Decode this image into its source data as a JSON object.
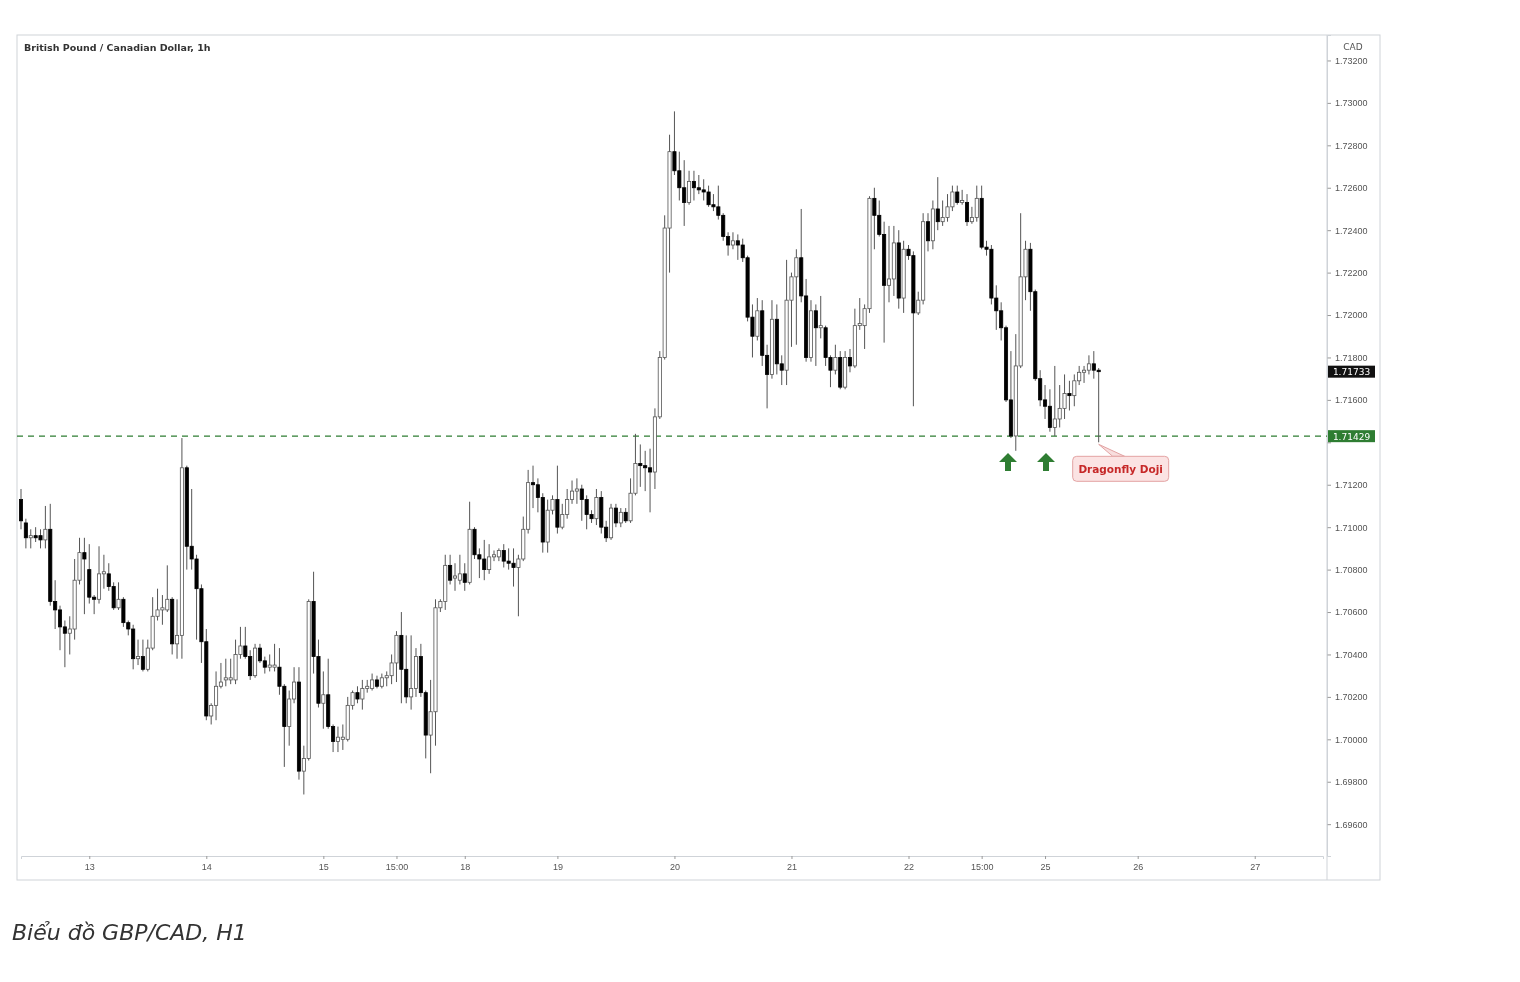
{
  "chart_data": {
    "type": "candlestick",
    "title": "British Pound / Canadian Dollar, 1h",
    "ylabel": "CAD",
    "categories": [
      null,
      null,
      null,
      null,
      null,
      null,
      null,
      null,
      null,
      null,
      null,
      null,
      null,
      null,
      "13",
      null,
      null,
      null,
      null,
      null,
      null,
      null,
      null,
      null,
      null,
      null,
      null,
      null,
      null,
      null,
      null,
      null,
      null,
      null,
      null,
      null,
      null,
      null,
      "14",
      null,
      null,
      null,
      null,
      null,
      null,
      null,
      null,
      null,
      null,
      null,
      null,
      null,
      null,
      null,
      null,
      null,
      null,
      null,
      null,
      null,
      null,
      null,
      "15",
      null,
      null,
      null,
      null,
      null,
      null,
      null,
      null,
      null,
      null,
      null,
      null,
      null,
      null,
      "15:00",
      null,
      null,
      null,
      null,
      null,
      null,
      null,
      null,
      null,
      null,
      null,
      null,
      null,
      "18",
      null,
      null,
      null,
      null,
      null,
      null,
      null,
      null,
      null,
      null,
      null,
      null,
      null,
      null,
      null,
      null,
      null,
      null,
      "19",
      null,
      null,
      null,
      null,
      null,
      null,
      null,
      null,
      null,
      null,
      null,
      null,
      null,
      null,
      null,
      null,
      null,
      null,
      null,
      null,
      null,
      null,
      null,
      "20",
      null,
      null,
      null,
      null,
      null,
      null,
      null,
      null,
      null,
      null,
      null,
      null,
      null,
      null,
      null,
      null,
      null,
      null,
      null,
      null,
      null,
      null,
      null,
      "21",
      null,
      null,
      null,
      null,
      null,
      null,
      null,
      null,
      null,
      null,
      null,
      null,
      null,
      null,
      null,
      null,
      null,
      null,
      null,
      null,
      null,
      null,
      null,
      "22",
      null,
      null,
      null,
      null,
      null,
      null,
      null,
      null,
      null,
      null,
      null,
      null,
      null,
      null,
      "15:00",
      null,
      null,
      null,
      null,
      null,
      null,
      null,
      null,
      null,
      null,
      null,
      null,
      "25",
      null,
      null,
      null,
      null,
      null,
      null,
      null,
      null,
      null,
      null,
      null,
      null,
      null,
      null,
      null,
      null,
      null,
      null,
      "26",
      null,
      null,
      null,
      null,
      null,
      null,
      null,
      null,
      null,
      null,
      null,
      null,
      null,
      null,
      null,
      null,
      null,
      null,
      null,
      null,
      null,
      null,
      null,
      "27",
      null,
      null,
      null,
      null,
      null,
      null,
      null,
      null,
      null,
      null,
      null,
      null,
      null,
      null
    ],
    "ohlc": [
      [
        1.7113,
        1.7118,
        1.7099,
        1.7103
      ],
      [
        1.7102,
        1.7104,
        1.709,
        1.7095
      ],
      [
        1.7095,
        1.7099,
        1.709,
        1.7096
      ],
      [
        1.7096,
        1.71,
        1.7093,
        1.7095
      ],
      [
        1.7096,
        1.7099,
        1.709,
        1.7094
      ],
      [
        1.7094,
        1.711,
        1.709,
        1.7099
      ],
      [
        1.7099,
        1.7111,
        1.7063,
        1.7065
      ],
      [
        1.7065,
        1.7075,
        1.7052,
        1.7061
      ],
      [
        1.7061,
        1.7063,
        1.7042,
        1.7053
      ],
      [
        1.7053,
        1.7056,
        1.7034,
        1.705
      ],
      [
        1.705,
        1.7058,
        1.704,
        1.7052
      ],
      [
        1.7052,
        1.7085,
        1.7047,
        1.7075
      ],
      [
        1.7075,
        1.7095,
        1.7073,
        1.7088
      ],
      [
        1.7088,
        1.7095,
        1.7059,
        1.7085
      ],
      [
        1.708,
        1.7092,
        1.7064,
        1.7067
      ],
      [
        1.7067,
        1.7068,
        1.7059,
        1.7066
      ],
      [
        1.7066,
        1.7091,
        1.7064,
        1.7078
      ],
      [
        1.7078,
        1.7087,
        1.7071,
        1.7079
      ],
      [
        1.7078,
        1.7083,
        1.707,
        1.7072
      ],
      [
        1.7072,
        1.7074,
        1.7061,
        1.7062
      ],
      [
        1.7062,
        1.7074,
        1.7061,
        1.7066
      ],
      [
        1.7066,
        1.7067,
        1.7053,
        1.7055
      ],
      [
        1.7055,
        1.7056,
        1.7049,
        1.7052
      ],
      [
        1.7052,
        1.7054,
        1.7033,
        1.7038
      ],
      [
        1.7038,
        1.7047,
        1.7035,
        1.7039
      ],
      [
        1.7039,
        1.7047,
        1.7032,
        1.7033
      ],
      [
        1.7033,
        1.7047,
        1.7032,
        1.7043
      ],
      [
        1.7043,
        1.7067,
        1.7042,
        1.7058
      ],
      [
        1.7058,
        1.7071,
        1.7056,
        1.7061
      ],
      [
        1.7061,
        1.7068,
        1.7054,
        1.7062
      ],
      [
        1.7061,
        1.7082,
        1.706,
        1.7066
      ],
      [
        1.7066,
        1.7067,
        1.704,
        1.7045
      ],
      [
        1.7045,
        1.7066,
        1.7038,
        1.7049
      ],
      [
        1.7049,
        1.7142,
        1.7038,
        1.7128
      ],
      [
        1.7128,
        1.7129,
        1.708,
        1.7091
      ],
      [
        1.7091,
        1.7118,
        1.708,
        1.7085
      ],
      [
        1.7085,
        1.7087,
        1.7047,
        1.7071
      ],
      [
        1.7071,
        1.7073,
        1.7036,
        1.7046
      ],
      [
        1.7046,
        1.7052,
        1.7009,
        1.7011
      ],
      [
        1.7011,
        1.7017,
        1.7007,
        1.7016
      ],
      [
        1.7016,
        1.7032,
        1.7009,
        1.7025
      ],
      [
        1.7025,
        1.7036,
        1.7024,
        1.7027
      ],
      [
        1.7028,
        1.7038,
        1.7025,
        1.7029
      ],
      [
        1.7028,
        1.7038,
        1.7026,
        1.7029
      ],
      [
        1.7028,
        1.7047,
        1.7026,
        1.704
      ],
      [
        1.704,
        1.7053,
        1.7038,
        1.7044
      ],
      [
        1.7044,
        1.7053,
        1.7038,
        1.7039
      ],
      [
        1.7039,
        1.7042,
        1.7028,
        1.703
      ],
      [
        1.703,
        1.7045,
        1.7029,
        1.7043
      ],
      [
        1.7043,
        1.7045,
        1.7036,
        1.7037
      ],
      [
        1.7037,
        1.7039,
        1.7031,
        1.7034
      ],
      [
        1.7034,
        1.704,
        1.7032,
        1.7035
      ],
      [
        1.7034,
        1.7045,
        1.7032,
        1.7035
      ],
      [
        1.7034,
        1.7043,
        1.7021,
        1.7025
      ],
      [
        1.7025,
        1.7026,
        1.6987,
        1.7006
      ],
      [
        1.7006,
        1.7023,
        1.6997,
        1.7019
      ],
      [
        1.7019,
        1.7034,
        1.7017,
        1.7027
      ],
      [
        1.7027,
        1.7034,
        1.6981,
        1.6985
      ],
      [
        1.6985,
        1.6997,
        1.6974,
        1.6991
      ],
      [
        1.6991,
        1.7066,
        1.699,
        1.7065
      ],
      [
        1.7065,
        1.7079,
        1.7031,
        1.7039
      ],
      [
        1.7039,
        1.7047,
        1.7015,
        1.7017
      ],
      [
        1.7017,
        1.7032,
        1.7005,
        1.7021
      ],
      [
        1.7021,
        1.7038,
        1.7005,
        1.7006
      ],
      [
        1.7006,
        1.7007,
        1.6994,
        1.6999
      ],
      [
        1.6999,
        1.7006,
        1.6994,
        1.7001
      ],
      [
        1.7,
        1.7007,
        1.6995,
        1.7001
      ],
      [
        1.7,
        1.702,
        1.6999,
        1.7016
      ],
      [
        1.7016,
        1.7023,
        1.7014,
        1.7022
      ],
      [
        1.7022,
        1.7025,
        1.7017,
        1.7019
      ],
      [
        1.7019,
        1.7028,
        1.7014,
        1.7024
      ],
      [
        1.7024,
        1.7028,
        1.7022,
        1.7025
      ],
      [
        1.7024,
        1.7031,
        1.7023,
        1.7028
      ],
      [
        1.7028,
        1.703,
        1.7024,
        1.7025
      ],
      [
        1.7025,
        1.7031,
        1.7024,
        1.7029
      ],
      [
        1.7029,
        1.7032,
        1.7025,
        1.703
      ],
      [
        1.703,
        1.704,
        1.7026,
        1.7036
      ],
      [
        1.7036,
        1.7051,
        1.7027,
        1.7049
      ],
      [
        1.7049,
        1.706,
        1.7017,
        1.7033
      ],
      [
        1.7033,
        1.7049,
        1.7017,
        1.702
      ],
      [
        1.702,
        1.7049,
        1.7014,
        1.7024
      ],
      [
        1.7024,
        1.7043,
        1.702,
        1.7039
      ],
      [
        1.7039,
        1.7045,
        1.702,
        1.7022
      ],
      [
        1.7022,
        1.7023,
        1.6991,
        1.7002
      ],
      [
        1.7002,
        1.7028,
        1.6984,
        1.7013
      ],
      [
        1.7013,
        1.7066,
        1.6997,
        1.7062
      ],
      [
        1.7062,
        1.7066,
        1.706,
        1.7065
      ],
      [
        1.7065,
        1.7087,
        1.7061,
        1.7082
      ],
      [
        1.7082,
        1.7087,
        1.7073,
        1.7075
      ],
      [
        1.7076,
        1.7083,
        1.707,
        1.7077
      ],
      [
        1.7075,
        1.7087,
        1.7073,
        1.7078
      ],
      [
        1.7078,
        1.7083,
        1.707,
        1.7074
      ],
      [
        1.7074,
        1.7112,
        1.7073,
        1.7099
      ],
      [
        1.7099,
        1.71,
        1.7085,
        1.7087
      ],
      [
        1.7087,
        1.709,
        1.7076,
        1.7085
      ],
      [
        1.7085,
        1.7094,
        1.7075,
        1.708
      ],
      [
        1.708,
        1.7092,
        1.7078,
        1.7086
      ],
      [
        1.7086,
        1.7089,
        1.7084,
        1.7087
      ],
      [
        1.7086,
        1.709,
        1.7084,
        1.7089
      ],
      [
        1.7089,
        1.7092,
        1.7081,
        1.7084
      ],
      [
        1.7084,
        1.709,
        1.708,
        1.7083
      ],
      [
        1.7083,
        1.709,
        1.7072,
        1.7081
      ],
      [
        1.7081,
        1.7087,
        1.7058,
        1.7085
      ],
      [
        1.7085,
        1.7105,
        1.7084,
        1.7099
      ],
      [
        1.7099,
        1.7127,
        1.7097,
        1.7121
      ],
      [
        1.7121,
        1.7129,
        1.7109,
        1.712
      ],
      [
        1.712,
        1.7123,
        1.7107,
        1.7114
      ],
      [
        1.7114,
        1.7116,
        1.7088,
        1.7093
      ],
      [
        1.7093,
        1.7113,
        1.7088,
        1.7108
      ],
      [
        1.7108,
        1.7115,
        1.7106,
        1.7113
      ],
      [
        1.7113,
        1.7129,
        1.7097,
        1.71
      ],
      [
        1.71,
        1.7111,
        1.7099,
        1.7106
      ],
      [
        1.7106,
        1.7118,
        1.7104,
        1.7113
      ],
      [
        1.7113,
        1.7122,
        1.7111,
        1.7117
      ],
      [
        1.7117,
        1.7123,
        1.7111,
        1.7118
      ],
      [
        1.7118,
        1.712,
        1.7103,
        1.7113
      ],
      [
        1.7113,
        1.7115,
        1.7099,
        1.7106
      ],
      [
        1.7106,
        1.7108,
        1.7102,
        1.7104
      ],
      [
        1.7104,
        1.7118,
        1.7101,
        1.7114
      ],
      [
        1.7114,
        1.7117,
        1.7097,
        1.71
      ],
      [
        1.71,
        1.7103,
        1.7093,
        1.7095
      ],
      [
        1.7095,
        1.7111,
        1.7094,
        1.7109
      ],
      [
        1.7109,
        1.7111,
        1.71,
        1.7102
      ],
      [
        1.7102,
        1.7109,
        1.71,
        1.7107
      ],
      [
        1.7107,
        1.7109,
        1.7102,
        1.7103
      ],
      [
        1.7103,
        1.7123,
        1.7102,
        1.7116
      ],
      [
        1.7116,
        1.7144,
        1.7115,
        1.713
      ],
      [
        1.713,
        1.7139,
        1.7119,
        1.7129
      ],
      [
        1.7129,
        1.7136,
        1.7117,
        1.7128
      ],
      [
        1.7128,
        1.7137,
        1.7107,
        1.7126
      ],
      [
        1.7126,
        1.7156,
        1.7118,
        1.7152
      ],
      [
        1.7152,
        1.7183,
        1.7151,
        1.718
      ],
      [
        1.718,
        1.7247,
        1.7179,
        1.7241
      ],
      [
        1.7241,
        1.7285,
        1.722,
        1.7277
      ],
      [
        1.7277,
        1.7296,
        1.7266,
        1.7268
      ],
      [
        1.7268,
        1.7277,
        1.7254,
        1.726
      ],
      [
        1.726,
        1.7273,
        1.7242,
        1.7253
      ],
      [
        1.7253,
        1.7268,
        1.7252,
        1.7263
      ],
      [
        1.7263,
        1.7268,
        1.7254,
        1.726
      ],
      [
        1.726,
        1.7266,
        1.7257,
        1.7259
      ],
      [
        1.7259,
        1.7264,
        1.7254,
        1.7258
      ],
      [
        1.7258,
        1.7261,
        1.7251,
        1.7252
      ],
      [
        1.7252,
        1.7257,
        1.7249,
        1.7251
      ],
      [
        1.7251,
        1.7261,
        1.7245,
        1.7247
      ],
      [
        1.7247,
        1.7248,
        1.7235,
        1.7237
      ],
      [
        1.7237,
        1.7239,
        1.7228,
        1.7233
      ],
      [
        1.7233,
        1.7239,
        1.7231,
        1.7235
      ],
      [
        1.7235,
        1.7238,
        1.7226,
        1.7233
      ],
      [
        1.7233,
        1.7236,
        1.7225,
        1.7227
      ],
      [
        1.7227,
        1.7228,
        1.7197,
        1.7199
      ],
      [
        1.7199,
        1.7205,
        1.718,
        1.719
      ],
      [
        1.719,
        1.7208,
        1.7188,
        1.7202
      ],
      [
        1.7202,
        1.7207,
        1.7176,
        1.7181
      ],
      [
        1.7181,
        1.7186,
        1.7156,
        1.7172
      ],
      [
        1.7172,
        1.7207,
        1.717,
        1.7198
      ],
      [
        1.7198,
        1.7205,
        1.7172,
        1.7177
      ],
      [
        1.7177,
        1.7181,
        1.7167,
        1.7174
      ],
      [
        1.7174,
        1.7226,
        1.7167,
        1.7207
      ],
      [
        1.7207,
        1.722,
        1.7185,
        1.7218
      ],
      [
        1.7218,
        1.7231,
        1.7186,
        1.7227
      ],
      [
        1.7227,
        1.725,
        1.7206,
        1.7209
      ],
      [
        1.7209,
        1.7217,
        1.7178,
        1.718
      ],
      [
        1.718,
        1.7207,
        1.7178,
        1.7202
      ],
      [
        1.7202,
        1.7205,
        1.7176,
        1.7194
      ],
      [
        1.7194,
        1.7209,
        1.7189,
        1.7195
      ],
      [
        1.7194,
        1.7195,
        1.7176,
        1.718
      ],
      [
        1.718,
        1.7181,
        1.7166,
        1.7174
      ],
      [
        1.7174,
        1.7186,
        1.7172,
        1.718
      ],
      [
        1.718,
        1.7183,
        1.7165,
        1.7166
      ],
      [
        1.7166,
        1.7183,
        1.7165,
        1.718
      ],
      [
        1.718,
        1.7184,
        1.7173,
        1.7176
      ],
      [
        1.7176,
        1.7203,
        1.7175,
        1.7195
      ],
      [
        1.7195,
        1.7208,
        1.7193,
        1.7196
      ],
      [
        1.7195,
        1.7205,
        1.7184,
        1.7203
      ],
      [
        1.7203,
        1.7256,
        1.7201,
        1.7255
      ],
      [
        1.7255,
        1.726,
        1.7231,
        1.7247
      ],
      [
        1.7247,
        1.7254,
        1.7237,
        1.7238
      ],
      [
        1.7238,
        1.7244,
        1.7187,
        1.7214
      ],
      [
        1.7214,
        1.7242,
        1.7206,
        1.7217
      ],
      [
        1.7217,
        1.7242,
        1.7209,
        1.7234
      ],
      [
        1.7234,
        1.724,
        1.7203,
        1.7208
      ],
      [
        1.7208,
        1.7235,
        1.7201,
        1.7231
      ],
      [
        1.7231,
        1.7233,
        1.7226,
        1.7228
      ],
      [
        1.7228,
        1.723,
        1.7157,
        1.7201
      ],
      [
        1.7201,
        1.7211,
        1.72,
        1.7207
      ],
      [
        1.7207,
        1.7248,
        1.7205,
        1.7244
      ],
      [
        1.7244,
        1.7248,
        1.723,
        1.7235
      ],
      [
        1.7235,
        1.7254,
        1.7231,
        1.725
      ],
      [
        1.725,
        1.7265,
        1.724,
        1.7244
      ],
      [
        1.7244,
        1.7254,
        1.7242,
        1.7246
      ],
      [
        1.7246,
        1.7257,
        1.7244,
        1.7251
      ],
      [
        1.7251,
        1.7261,
        1.7249,
        1.7258
      ],
      [
        1.7258,
        1.7261,
        1.7252,
        1.7253
      ],
      [
        1.7253,
        1.7259,
        1.7252,
        1.7254
      ],
      [
        1.7253,
        1.7257,
        1.7242,
        1.7244
      ],
      [
        1.7244,
        1.7251,
        1.7243,
        1.7246
      ],
      [
        1.7246,
        1.7261,
        1.7244,
        1.7255
      ],
      [
        1.7255,
        1.7261,
        1.7231,
        1.7232
      ],
      [
        1.7232,
        1.7235,
        1.7228,
        1.7231
      ],
      [
        1.7231,
        1.7233,
        1.7205,
        1.7208
      ],
      [
        1.7208,
        1.7214,
        1.7193,
        1.7202
      ],
      [
        1.7202,
        1.7206,
        1.7188,
        1.7194
      ],
      [
        1.7194,
        1.7195,
        1.7159,
        1.716
      ],
      [
        1.716,
        1.7183,
        1.7142,
        1.7143
      ],
      [
        1.7143,
        1.7191,
        1.7136,
        1.7176
      ],
      [
        1.7176,
        1.7248,
        1.7175,
        1.7218
      ],
      [
        1.7218,
        1.7235,
        1.7207,
        1.7231
      ],
      [
        1.7231,
        1.7234,
        1.7202,
        1.7211
      ],
      [
        1.7211,
        1.7212,
        1.7169,
        1.717
      ],
      [
        1.717,
        1.7174,
        1.7157,
        1.716
      ],
      [
        1.716,
        1.7167,
        1.7151,
        1.7157
      ],
      [
        1.7157,
        1.7165,
        1.7145,
        1.7147
      ],
      [
        1.7147,
        1.7176,
        1.7143,
        1.7151
      ],
      [
        1.7151,
        1.7167,
        1.7147,
        1.7156
      ],
      [
        1.7156,
        1.7172,
        1.7151,
        1.7163
      ],
      [
        1.7163,
        1.7169,
        1.7155,
        1.7162
      ],
      [
        1.7162,
        1.7172,
        1.7157,
        1.7169
      ],
      [
        1.7169,
        1.7176,
        1.7167,
        1.7173
      ],
      [
        1.7173,
        1.7176,
        1.7168,
        1.7174
      ],
      [
        1.7174,
        1.7181,
        1.7172,
        1.7177
      ],
      [
        1.7177,
        1.7183,
        1.717,
        1.7174
      ],
      [
        1.7174,
        1.7175,
        1.714,
        1.71733
      ],
      null,
      null,
      null,
      null,
      null,
      null,
      null,
      null,
      null,
      null,
      null,
      null,
      null,
      null,
      null,
      null,
      null,
      null,
      null,
      null,
      null,
      null,
      null,
      null,
      null,
      null,
      null,
      null,
      null,
      null,
      null,
      null,
      null,
      null,
      null,
      null,
      null,
      null,
      null,
      null,
      null,
      null,
      null,
      null,
      null,
      null
    ],
    "ylim": [
      1.6945,
      1.7332
    ],
    "yticks": [
      {
        "value": 1.696,
        "label": "1.69600"
      },
      {
        "value": 1.698,
        "label": "1.69800"
      },
      {
        "value": 1.7,
        "label": "1.70000"
      },
      {
        "value": 1.702,
        "label": "1.70200"
      },
      {
        "value": 1.704,
        "label": "1.70400"
      },
      {
        "value": 1.706,
        "label": "1.70600"
      },
      {
        "value": 1.708,
        "label": "1.70800"
      },
      {
        "value": 1.71,
        "label": "1.71000"
      },
      {
        "value": 1.712,
        "label": "1.71200"
      },
      {
        "value": 1.714,
        "label": null
      },
      {
        "value": 1.716,
        "label": "1.71600"
      },
      {
        "value": 1.718,
        "label": "1.71800"
      },
      {
        "value": 1.72,
        "label": "1.72000"
      },
      {
        "value": 1.722,
        "label": "1.72200"
      },
      {
        "value": 1.724,
        "label": "1.72400"
      },
      {
        "value": 1.726,
        "label": "1.72600"
      },
      {
        "value": 1.728,
        "label": "1.72800"
      },
      {
        "value": 1.73,
        "label": "1.73000"
      },
      {
        "value": 1.732,
        "label": "1.73200"
      }
    ],
    "ref_lines": [
      {
        "axis": "y",
        "value": 1.71429,
        "label": "1.71429",
        "color": "#2e7d32",
        "line_style": "dashed"
      }
    ],
    "annotations": [
      "1.71733",
      "Dragonfly Doji",
      "Biểu đồ GBP/CAD, H1"
    ]
  }
}
